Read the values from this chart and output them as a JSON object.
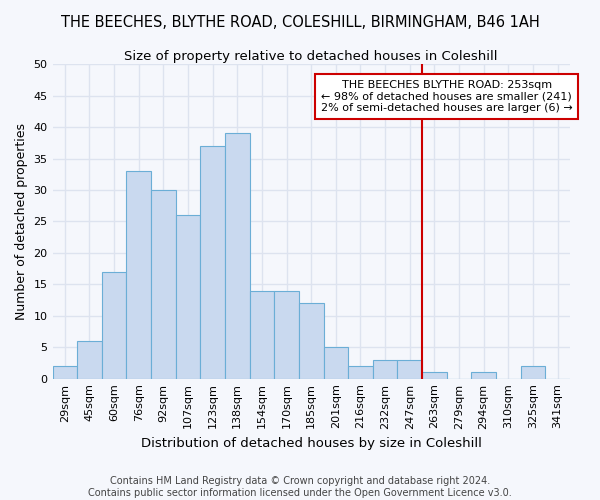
{
  "title": "THE BEECHES, BLYTHE ROAD, COLESHILL, BIRMINGHAM, B46 1AH",
  "subtitle": "Size of property relative to detached houses in Coleshill",
  "xlabel": "Distribution of detached houses by size in Coleshill",
  "ylabel": "Number of detached properties",
  "bins": [
    "29sqm",
    "45sqm",
    "60sqm",
    "76sqm",
    "92sqm",
    "107sqm",
    "123sqm",
    "138sqm",
    "154sqm",
    "170sqm",
    "185sqm",
    "201sqm",
    "216sqm",
    "232sqm",
    "247sqm",
    "263sqm",
    "279sqm",
    "294sqm",
    "310sqm",
    "325sqm",
    "341sqm"
  ],
  "values": [
    2,
    6,
    17,
    33,
    30,
    26,
    37,
    39,
    14,
    14,
    12,
    5,
    2,
    3,
    3,
    1,
    0,
    1,
    0,
    2,
    0
  ],
  "bar_color": "#c9d9ef",
  "bar_edge_color": "#6baed6",
  "vline_x_index": 14.5,
  "vline_color": "#cc0000",
  "annotation_text": "THE BEECHES BLYTHE ROAD: 253sqm\n← 98% of detached houses are smaller (241)\n2% of semi-detached houses are larger (6) →",
  "annotation_box_color": "#ffffff",
  "annotation_box_edge_color": "#cc0000",
  "ylim": [
    0,
    50
  ],
  "yticks": [
    0,
    5,
    10,
    15,
    20,
    25,
    30,
    35,
    40,
    45,
    50
  ],
  "footnote": "Contains HM Land Registry data © Crown copyright and database right 2024.\nContains public sector information licensed under the Open Government Licence v3.0.",
  "background_color": "#f5f7fc",
  "plot_background_color": "#f5f7fc",
  "grid_color": "#dde3ef",
  "title_fontsize": 10.5,
  "subtitle_fontsize": 9.5,
  "axis_label_fontsize": 9,
  "tick_fontsize": 8,
  "annotation_fontsize": 8,
  "footnote_fontsize": 7
}
